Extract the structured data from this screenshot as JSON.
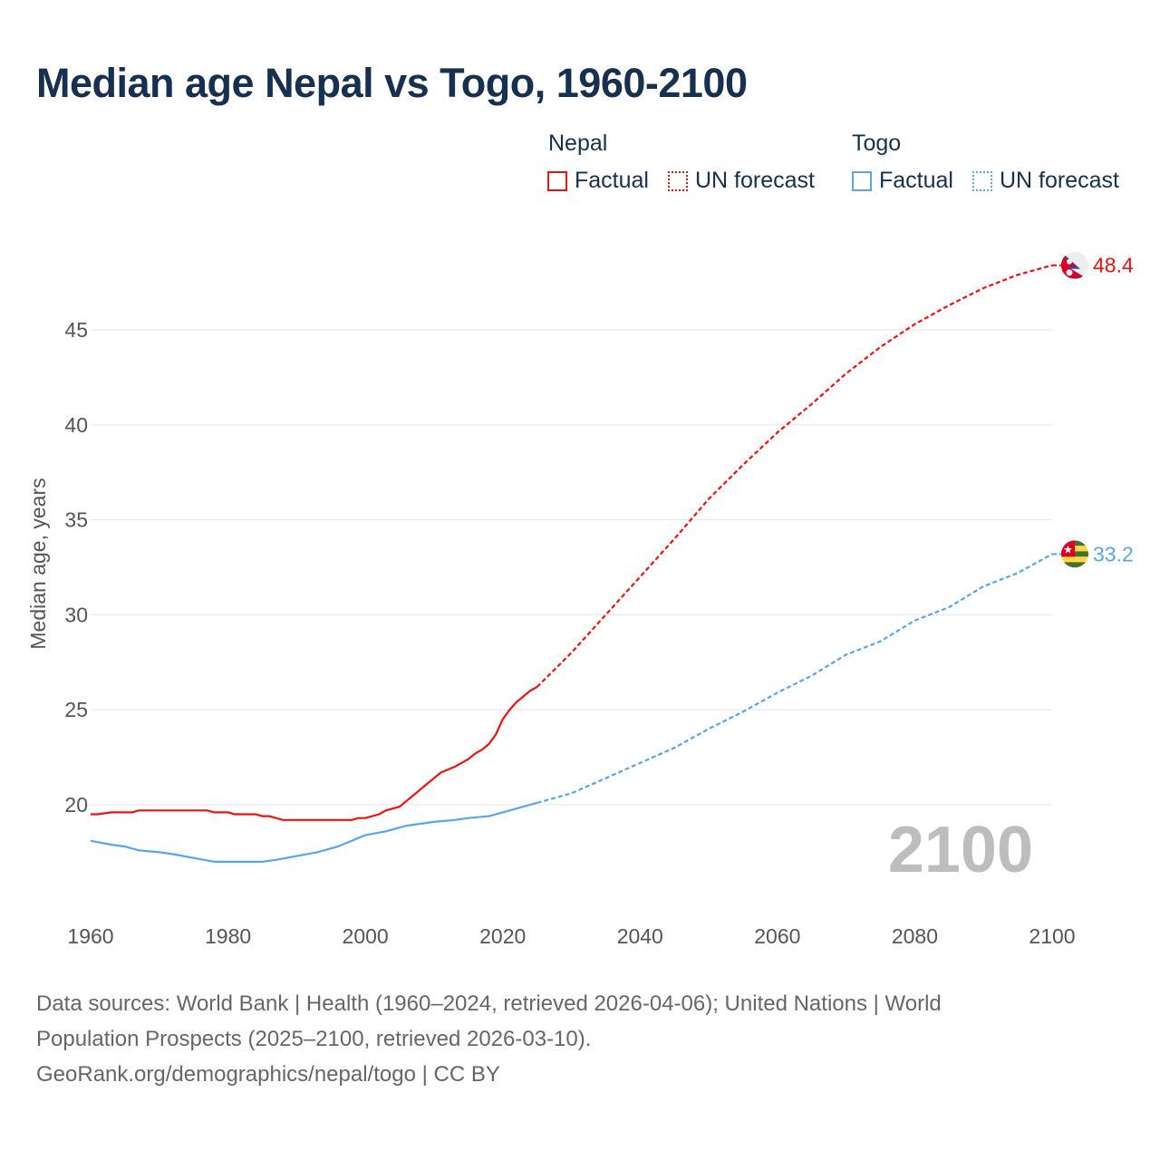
{
  "title": "Median age Nepal vs Togo, 1960-2100",
  "legend": {
    "groups": [
      {
        "name": "Nepal",
        "factual": "Factual",
        "forecast": "UN forecast",
        "color": "#ee1111"
      },
      {
        "name": "Togo",
        "factual": "Factual",
        "forecast": "UN forecast",
        "color": "#5ba4ea"
      }
    ]
  },
  "chart_data": {
    "type": "line",
    "title": "Median age Nepal vs Togo, 1960-2100",
    "xlabel": "",
    "ylabel": "Median age, years",
    "xlim": [
      1960,
      2100
    ],
    "ylim": [
      15,
      50
    ],
    "xticks": [
      "1960",
      "1980",
      "2000",
      "2020",
      "2040",
      "2060",
      "2080",
      "2100"
    ],
    "yticks": [
      "20",
      "25",
      "30",
      "35",
      "40",
      "45"
    ],
    "grid": true,
    "year_label": "2100",
    "series": [
      {
        "name": "Nepal",
        "color": "#ee1111",
        "end_label": "48.4",
        "factual": {
          "x": [
            1960,
            1961,
            1963,
            1966,
            1967,
            1977,
            1978,
            1980,
            1981,
            1984,
            1985,
            1986,
            1988,
            1998,
            1999,
            2000,
            2002,
            2003,
            2005,
            2006,
            2007,
            2008,
            2009,
            2010,
            2011,
            2013,
            2015,
            2016,
            2017,
            2018,
            2019,
            2020,
            2021,
            2022,
            2023,
            2024,
            2025
          ],
          "y": [
            19.5,
            19.5,
            19.6,
            19.6,
            19.7,
            19.7,
            19.6,
            19.6,
            19.5,
            19.5,
            19.4,
            19.4,
            19.2,
            19.2,
            19.3,
            19.3,
            19.5,
            19.7,
            19.9,
            20.2,
            20.5,
            20.8,
            21.1,
            21.4,
            21.7,
            22.0,
            22.4,
            22.7,
            22.9,
            23.2,
            23.7,
            24.5,
            25.0,
            25.4,
            25.7,
            26.0,
            26.2
          ]
        },
        "forecast": {
          "x": [
            2025,
            2030,
            2035,
            2040,
            2045,
            2050,
            2055,
            2060,
            2065,
            2070,
            2075,
            2080,
            2085,
            2090,
            2095,
            2100
          ],
          "y": [
            26.2,
            28.0,
            30.0,
            32.0,
            34.0,
            36.1,
            37.9,
            39.6,
            41.1,
            42.7,
            44.1,
            45.3,
            46.3,
            47.2,
            47.9,
            48.4
          ]
        }
      },
      {
        "name": "Togo",
        "color": "#5ba4ea",
        "end_label": "33.2",
        "factual": {
          "x": [
            1960,
            1963,
            1965,
            1967,
            1970,
            1972,
            1975,
            1978,
            1980,
            1985,
            1987,
            1990,
            1993,
            1996,
            1998,
            2000,
            2003,
            2006,
            2008,
            2010,
            2013,
            2015,
            2018,
            2020,
            2022,
            2024,
            2025
          ],
          "y": [
            18.1,
            17.9,
            17.8,
            17.6,
            17.5,
            17.4,
            17.2,
            17.0,
            17.0,
            17.0,
            17.1,
            17.3,
            17.5,
            17.8,
            18.1,
            18.4,
            18.6,
            18.9,
            19.0,
            19.1,
            19.2,
            19.3,
            19.4,
            19.6,
            19.8,
            20.0,
            20.1
          ]
        },
        "forecast": {
          "x": [
            2025,
            2030,
            2035,
            2040,
            2045,
            2050,
            2055,
            2060,
            2065,
            2070,
            2075,
            2080,
            2085,
            2090,
            2095,
            2100
          ],
          "y": [
            20.1,
            20.6,
            21.4,
            22.2,
            23.0,
            24.0,
            24.9,
            25.9,
            26.8,
            27.9,
            28.6,
            29.7,
            30.4,
            31.5,
            32.2,
            33.2
          ]
        }
      }
    ]
  },
  "footer": {
    "line1": "Data sources: World Bank | Health (1960–2024, retrieved 2026-04-06); United Nations | World",
    "line2": "Population Prospects (2025–2100, retrieved 2026-03-10).",
    "line3": "GeoRank.org/demographics/nepal/togo | CC BY"
  }
}
